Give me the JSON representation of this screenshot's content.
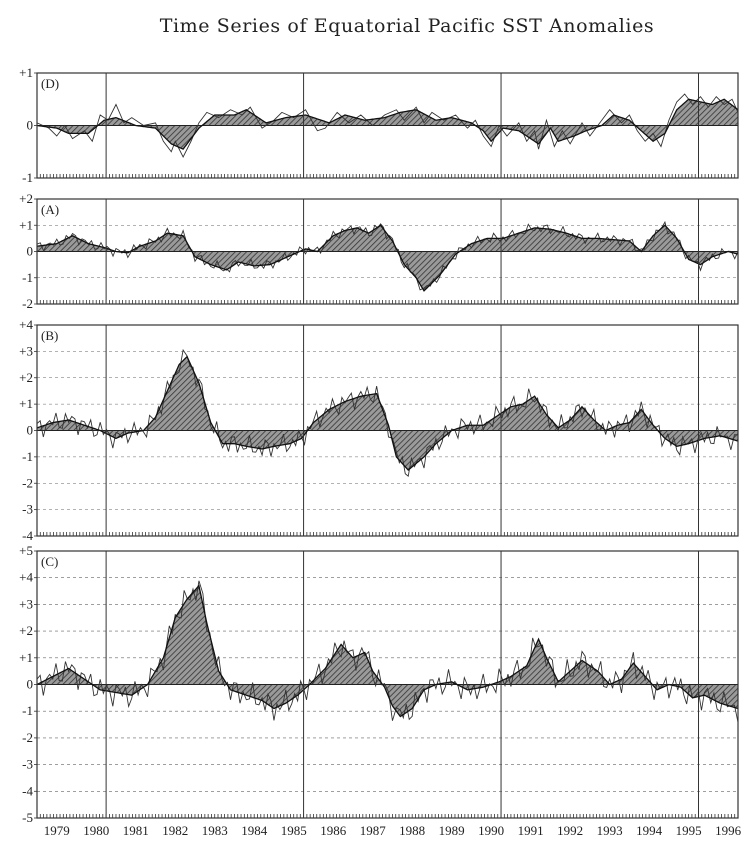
{
  "title": "Time Series of Equatorial Pacific SST Anomalies",
  "years": [
    "1979",
    "1980",
    "1981",
    "1982",
    "1983",
    "1984",
    "1985",
    "1986",
    "1987",
    "1988",
    "1989",
    "1990",
    "1991",
    "1992",
    "1993",
    "1994",
    "1995",
    "1996"
  ],
  "chart_data": [
    {
      "type": "line",
      "label": "(D)",
      "ylim": [
        -1,
        1
      ],
      "tick_labels": [
        "+1",
        "0",
        "-1"
      ],
      "x_start": 1979.0,
      "x_end": 1996.75,
      "smoothed_knots": [
        [
          1979.0,
          0.0
        ],
        [
          1979.5,
          -0.05
        ],
        [
          1979.8,
          -0.15
        ],
        [
          1980.3,
          -0.15
        ],
        [
          1980.7,
          0.1
        ],
        [
          1981.0,
          0.15
        ],
        [
          1981.5,
          0.0
        ],
        [
          1982.0,
          -0.05
        ],
        [
          1982.4,
          -0.35
        ],
        [
          1982.7,
          -0.45
        ],
        [
          1983.1,
          -0.05
        ],
        [
          1983.5,
          0.2
        ],
        [
          1984.0,
          0.2
        ],
        [
          1984.3,
          0.3
        ],
        [
          1984.8,
          0.05
        ],
        [
          1985.3,
          0.15
        ],
        [
          1985.8,
          0.2
        ],
        [
          1986.4,
          0.05
        ],
        [
          1986.8,
          0.2
        ],
        [
          1987.3,
          0.1
        ],
        [
          1987.8,
          0.15
        ],
        [
          1988.2,
          0.25
        ],
        [
          1988.6,
          0.3
        ],
        [
          1989.1,
          0.1
        ],
        [
          1989.5,
          0.15
        ],
        [
          1990.0,
          0.05
        ],
        [
          1990.3,
          -0.1
        ],
        [
          1990.5,
          -0.3
        ],
        [
          1990.8,
          -0.05
        ],
        [
          1991.2,
          -0.1
        ],
        [
          1991.4,
          -0.2
        ],
        [
          1991.7,
          -0.35
        ],
        [
          1992.0,
          -0.05
        ],
        [
          1992.2,
          -0.3
        ],
        [
          1992.6,
          -0.2
        ],
        [
          1992.9,
          -0.1
        ],
        [
          1993.3,
          0.0
        ],
        [
          1993.6,
          0.2
        ],
        [
          1994.0,
          0.1
        ],
        [
          1994.3,
          -0.1
        ],
        [
          1994.6,
          -0.3
        ],
        [
          1994.9,
          -0.15
        ],
        [
          1995.2,
          0.3
        ],
        [
          1995.5,
          0.5
        ],
        [
          1995.8,
          0.45
        ],
        [
          1996.1,
          0.4
        ],
        [
          1996.4,
          0.5
        ],
        [
          1996.75,
          0.3
        ]
      ],
      "raw_knots": [
        [
          1979.0,
          0.05
        ],
        [
          1979.3,
          -0.05
        ],
        [
          1979.5,
          -0.2
        ],
        [
          1979.7,
          0.0
        ],
        [
          1979.9,
          -0.25
        ],
        [
          1980.2,
          -0.1
        ],
        [
          1980.4,
          -0.3
        ],
        [
          1980.6,
          0.2
        ],
        [
          1980.8,
          0.1
        ],
        [
          1981.0,
          0.4
        ],
        [
          1981.2,
          0.05
        ],
        [
          1981.4,
          0.15
        ],
        [
          1981.7,
          0.0
        ],
        [
          1982.0,
          0.05
        ],
        [
          1982.2,
          -0.3
        ],
        [
          1982.4,
          -0.5
        ],
        [
          1982.5,
          -0.3
        ],
        [
          1982.7,
          -0.6
        ],
        [
          1982.9,
          -0.3
        ],
        [
          1983.1,
          0.05
        ],
        [
          1983.3,
          0.25
        ],
        [
          1983.6,
          0.15
        ],
        [
          1983.9,
          0.3
        ],
        [
          1984.2,
          0.2
        ],
        [
          1984.4,
          0.35
        ],
        [
          1984.7,
          -0.05
        ],
        [
          1985.0,
          0.1
        ],
        [
          1985.2,
          0.25
        ],
        [
          1985.5,
          0.15
        ],
        [
          1985.8,
          0.3
        ],
        [
          1986.1,
          -0.1
        ],
        [
          1986.3,
          -0.05
        ],
        [
          1986.6,
          0.25
        ],
        [
          1986.9,
          0.05
        ],
        [
          1987.2,
          0.2
        ],
        [
          1987.5,
          0.0
        ],
        [
          1987.8,
          0.2
        ],
        [
          1988.1,
          0.3
        ],
        [
          1988.3,
          0.1
        ],
        [
          1988.6,
          0.35
        ],
        [
          1988.8,
          0.05
        ],
        [
          1989.0,
          0.25
        ],
        [
          1989.3,
          0.1
        ],
        [
          1989.6,
          0.2
        ],
        [
          1989.9,
          -0.05
        ],
        [
          1990.1,
          0.1
        ],
        [
          1990.3,
          -0.2
        ],
        [
          1990.5,
          -0.4
        ],
        [
          1990.7,
          0.0
        ],
        [
          1990.9,
          -0.2
        ],
        [
          1991.2,
          0.05
        ],
        [
          1991.4,
          -0.3
        ],
        [
          1991.6,
          -0.1
        ],
        [
          1991.7,
          -0.45
        ],
        [
          1991.9,
          0.1
        ],
        [
          1992.1,
          -0.4
        ],
        [
          1992.3,
          -0.1
        ],
        [
          1992.5,
          -0.35
        ],
        [
          1992.8,
          0.05
        ],
        [
          1993.0,
          -0.2
        ],
        [
          1993.3,
          0.1
        ],
        [
          1993.5,
          0.3
        ],
        [
          1993.8,
          0.05
        ],
        [
          1994.0,
          0.2
        ],
        [
          1994.2,
          -0.1
        ],
        [
          1994.4,
          -0.3
        ],
        [
          1994.6,
          -0.15
        ],
        [
          1994.8,
          -0.4
        ],
        [
          1995.0,
          0.1
        ],
        [
          1995.2,
          0.45
        ],
        [
          1995.4,
          0.6
        ],
        [
          1995.6,
          0.4
        ],
        [
          1995.8,
          0.55
        ],
        [
          1996.0,
          0.35
        ],
        [
          1996.2,
          0.55
        ],
        [
          1996.4,
          0.4
        ],
        [
          1996.6,
          0.5
        ],
        [
          1996.75,
          0.25
        ]
      ]
    },
    {
      "type": "line",
      "label": "(A)",
      "ylim": [
        -2,
        2
      ],
      "tick_labels": [
        "+2",
        "+1",
        "0",
        "-1",
        "-2"
      ],
      "x_start": 1979.0,
      "x_end": 1996.75,
      "smoothed_knots": [
        [
          1979.0,
          0.2
        ],
        [
          1979.5,
          0.3
        ],
        [
          1979.9,
          0.6
        ],
        [
          1980.3,
          0.3
        ],
        [
          1980.7,
          0.15
        ],
        [
          1981.0,
          0.0
        ],
        [
          1981.3,
          -0.05
        ],
        [
          1981.6,
          0.2
        ],
        [
          1982.0,
          0.4
        ],
        [
          1982.3,
          0.7
        ],
        [
          1982.7,
          0.6
        ],
        [
          1983.0,
          -0.2
        ],
        [
          1983.4,
          -0.5
        ],
        [
          1983.8,
          -0.7
        ],
        [
          1984.1,
          -0.4
        ],
        [
          1984.5,
          -0.55
        ],
        [
          1984.9,
          -0.5
        ],
        [
          1985.2,
          -0.3
        ],
        [
          1985.5,
          -0.1
        ],
        [
          1985.8,
          0.1
        ],
        [
          1986.1,
          0.0
        ],
        [
          1986.5,
          0.6
        ],
        [
          1986.8,
          0.8
        ],
        [
          1987.1,
          0.9
        ],
        [
          1987.4,
          0.7
        ],
        [
          1987.7,
          1.0
        ],
        [
          1988.0,
          0.4
        ],
        [
          1988.3,
          -0.5
        ],
        [
          1988.6,
          -1.0
        ],
        [
          1988.8,
          -1.5
        ],
        [
          1989.2,
          -0.9
        ],
        [
          1989.6,
          -0.1
        ],
        [
          1990.0,
          0.3
        ],
        [
          1990.4,
          0.5
        ],
        [
          1990.8,
          0.5
        ],
        [
          1991.2,
          0.7
        ],
        [
          1991.6,
          0.9
        ],
        [
          1992.0,
          0.85
        ],
        [
          1992.4,
          0.7
        ],
        [
          1992.8,
          0.5
        ],
        [
          1993.2,
          0.5
        ],
        [
          1993.6,
          0.45
        ],
        [
          1994.0,
          0.4
        ],
        [
          1994.3,
          0.0
        ],
        [
          1994.6,
          0.6
        ],
        [
          1994.9,
          1.0
        ],
        [
          1995.2,
          0.5
        ],
        [
          1995.5,
          -0.3
        ],
        [
          1995.8,
          -0.5
        ],
        [
          1996.1,
          -0.2
        ],
        [
          1996.5,
          0.0
        ],
        [
          1996.75,
          -0.1
        ]
      ]
    },
    {
      "type": "line",
      "label": "(B)",
      "ylim": [
        -4,
        4
      ],
      "tick_labels": [
        "+4",
        "+3",
        "+2",
        "+1",
        "0",
        "-1",
        "-2",
        "-3",
        "-4"
      ],
      "x_start": 1979.0,
      "x_end": 1996.75,
      "smoothed_knots": [
        [
          1979.0,
          0.1
        ],
        [
          1979.4,
          0.3
        ],
        [
          1979.8,
          0.4
        ],
        [
          1980.2,
          0.2
        ],
        [
          1980.6,
          0.0
        ],
        [
          1981.0,
          -0.3
        ],
        [
          1981.3,
          -0.1
        ],
        [
          1981.7,
          0.0
        ],
        [
          1982.0,
          0.5
        ],
        [
          1982.3,
          1.5
        ],
        [
          1982.6,
          2.5
        ],
        [
          1982.8,
          2.8
        ],
        [
          1983.1,
          1.8
        ],
        [
          1983.4,
          0.3
        ],
        [
          1983.7,
          -0.5
        ],
        [
          1984.0,
          -0.5
        ],
        [
          1984.3,
          -0.6
        ],
        [
          1984.7,
          -0.7
        ],
        [
          1985.0,
          -0.6
        ],
        [
          1985.4,
          -0.5
        ],
        [
          1985.7,
          -0.3
        ],
        [
          1986.0,
          0.3
        ],
        [
          1986.4,
          0.8
        ],
        [
          1986.8,
          1.1
        ],
        [
          1987.2,
          1.3
        ],
        [
          1987.6,
          1.4
        ],
        [
          1987.9,
          0.2
        ],
        [
          1988.1,
          -1.0
        ],
        [
          1988.4,
          -1.5
        ],
        [
          1988.8,
          -1.0
        ],
        [
          1989.1,
          -0.5
        ],
        [
          1989.5,
          0.0
        ],
        [
          1989.9,
          0.2
        ],
        [
          1990.3,
          0.2
        ],
        [
          1990.7,
          0.6
        ],
        [
          1991.0,
          0.9
        ],
        [
          1991.3,
          1.0
        ],
        [
          1991.6,
          1.3
        ],
        [
          1991.9,
          0.6
        ],
        [
          1992.2,
          0.1
        ],
        [
          1992.5,
          0.4
        ],
        [
          1992.8,
          0.9
        ],
        [
          1993.1,
          0.4
        ],
        [
          1993.4,
          0.0
        ],
        [
          1993.7,
          0.2
        ],
        [
          1994.0,
          0.3
        ],
        [
          1994.3,
          0.8
        ],
        [
          1994.6,
          0.2
        ],
        [
          1994.9,
          -0.3
        ],
        [
          1995.2,
          -0.6
        ],
        [
          1995.5,
          -0.5
        ],
        [
          1995.9,
          -0.3
        ],
        [
          1996.3,
          -0.2
        ],
        [
          1996.75,
          -0.4
        ]
      ]
    },
    {
      "type": "line",
      "label": "(C)",
      "ylim": [
        -5,
        5
      ],
      "tick_labels": [
        "+5",
        "+4",
        "+3",
        "+2",
        "+1",
        "0",
        "-1",
        "-2",
        "-3",
        "-4",
        "-5"
      ],
      "x_start": 1979.0,
      "x_end": 1996.75,
      "smoothed_knots": [
        [
          1979.0,
          0.0
        ],
        [
          1979.4,
          0.3
        ],
        [
          1979.8,
          0.6
        ],
        [
          1980.2,
          0.2
        ],
        [
          1980.6,
          -0.2
        ],
        [
          1981.0,
          -0.3
        ],
        [
          1981.4,
          -0.4
        ],
        [
          1981.8,
          0.0
        ],
        [
          1982.2,
          1.0
        ],
        [
          1982.5,
          2.5
        ],
        [
          1982.8,
          3.2
        ],
        [
          1983.1,
          3.7
        ],
        [
          1983.3,
          2.3
        ],
        [
          1983.6,
          0.5
        ],
        [
          1983.9,
          -0.2
        ],
        [
          1984.3,
          -0.4
        ],
        [
          1984.7,
          -0.6
        ],
        [
          1985.0,
          -0.9
        ],
        [
          1985.3,
          -0.7
        ],
        [
          1985.6,
          -0.4
        ],
        [
          1985.9,
          0.0
        ],
        [
          1986.3,
          0.6
        ],
        [
          1986.7,
          1.5
        ],
        [
          1987.0,
          1.0
        ],
        [
          1987.3,
          1.2
        ],
        [
          1987.5,
          0.5
        ],
        [
          1987.8,
          -0.1
        ],
        [
          1988.0,
          -0.8
        ],
        [
          1988.2,
          -1.2
        ],
        [
          1988.5,
          -0.9
        ],
        [
          1988.8,
          -0.2
        ],
        [
          1989.1,
          0.0
        ],
        [
          1989.5,
          0.1
        ],
        [
          1989.9,
          -0.2
        ],
        [
          1990.3,
          -0.1
        ],
        [
          1990.7,
          0.1
        ],
        [
          1991.0,
          0.3
        ],
        [
          1991.4,
          0.7
        ],
        [
          1991.7,
          1.7
        ],
        [
          1991.9,
          1.0
        ],
        [
          1992.2,
          0.1
        ],
        [
          1992.5,
          0.5
        ],
        [
          1992.8,
          0.9
        ],
        [
          1993.2,
          0.5
        ],
        [
          1993.5,
          0.0
        ],
        [
          1993.8,
          0.2
        ],
        [
          1994.1,
          0.8
        ],
        [
          1994.4,
          0.3
        ],
        [
          1994.7,
          -0.2
        ],
        [
          1995.0,
          0.0
        ],
        [
          1995.3,
          -0.1
        ],
        [
          1995.6,
          -0.5
        ],
        [
          1995.9,
          -0.4
        ],
        [
          1996.3,
          -0.7
        ],
        [
          1996.75,
          -0.9
        ]
      ]
    }
  ]
}
